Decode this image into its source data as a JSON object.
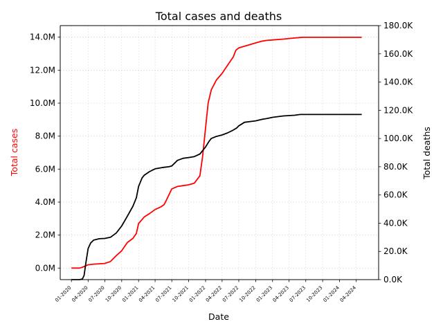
{
  "chart_data": {
    "type": "line",
    "title": "Total cases and deaths",
    "xlabel": "Date",
    "ylabel_left": "Total cases",
    "ylabel_right": "Total deaths",
    "x_tick_labels": [
      "01-2020",
      "04-2020",
      "07-2020",
      "10-2020",
      "01-2021",
      "04-2021",
      "07-2021",
      "10-2021",
      "01-2022",
      "04-2022",
      "07-2022",
      "10-2022",
      "01-2023",
      "04-2023",
      "07-2023",
      "10-2023",
      "01-2024",
      "04-2024"
    ],
    "y_left_tick_labels": [
      "0.0M",
      "2.0M",
      "4.0M",
      "6.0M",
      "8.0M",
      "10.0M",
      "12.0M",
      "14.0M"
    ],
    "y_right_tick_labels": [
      "0.0K",
      "20.0K",
      "40.0K",
      "60.0K",
      "80.0K",
      "100.0K",
      "120.0K",
      "140.0K",
      "160.0K",
      "180.0K"
    ],
    "ylim_left": [
      -700000,
      14700000
    ],
    "ylim_right": [
      0,
      180000
    ],
    "grid": true,
    "colors": {
      "cases": "#ff0000",
      "deaths": "#000000",
      "left_label": "#ff0000"
    },
    "series": [
      {
        "axis": "left",
        "color": "#ff0000",
        "x": [
          "2020-01-01",
          "2020-02-15",
          "2020-03-01",
          "2020-03-15",
          "2020-04-01",
          "2020-05-01",
          "2020-06-01",
          "2020-07-01",
          "2020-08-01",
          "2020-09-01",
          "2020-10-01",
          "2020-11-01",
          "2020-12-01",
          "2020-12-20",
          "2021-01-01",
          "2021-02-01",
          "2021-03-01",
          "2021-04-01",
          "2021-05-01",
          "2021-05-20",
          "2021-06-01",
          "2021-06-20",
          "2021-07-01",
          "2021-08-01",
          "2021-09-01",
          "2021-10-01",
          "2021-11-01",
          "2021-12-01",
          "2021-12-15",
          "2022-01-01",
          "2022-01-15",
          "2022-02-01",
          "2022-02-15",
          "2022-03-01",
          "2022-04-01",
          "2022-05-01",
          "2022-06-01",
          "2022-06-15",
          "2022-07-01",
          "2022-08-01",
          "2022-09-01",
          "2022-10-01",
          "2022-11-01",
          "2022-12-01",
          "2023-01-01",
          "2023-03-01",
          "2023-05-01",
          "2023-06-01",
          "2023-06-15",
          "2023-09-01",
          "2024-01-01",
          "2024-04-01",
          "2024-05-01"
        ],
        "values": [
          0,
          0,
          50000,
          120000,
          200000,
          240000,
          260000,
          280000,
          400000,
          750000,
          1050000,
          1550000,
          1800000,
          2100000,
          2700000,
          3100000,
          3300000,
          3550000,
          3700000,
          3850000,
          4100000,
          4550000,
          4800000,
          4950000,
          5000000,
          5050000,
          5150000,
          5600000,
          6700000,
          8500000,
          10000000,
          10800000,
          11100000,
          11400000,
          11800000,
          12300000,
          12800000,
          13200000,
          13350000,
          13450000,
          13550000,
          13650000,
          13750000,
          13800000,
          13830000,
          13880000,
          13950000,
          13980000,
          13990000,
          13990000,
          13990000,
          13990000,
          13990000
        ]
      },
      {
        "axis": "right",
        "color": "#000000",
        "x": [
          "2020-01-01",
          "2020-02-15",
          "2020-03-01",
          "2020-03-10",
          "2020-03-20",
          "2020-04-01",
          "2020-04-15",
          "2020-05-01",
          "2020-06-01",
          "2020-07-01",
          "2020-08-01",
          "2020-09-01",
          "2020-10-01",
          "2020-11-01",
          "2020-12-01",
          "2020-12-20",
          "2021-01-01",
          "2021-01-20",
          "2021-02-01",
          "2021-03-01",
          "2021-04-01",
          "2021-05-01",
          "2021-05-20",
          "2021-06-15",
          "2021-07-01",
          "2021-08-01",
          "2021-09-01",
          "2021-10-01",
          "2021-11-01",
          "2021-12-01",
          "2022-01-01",
          "2022-01-20",
          "2022-02-01",
          "2022-03-01",
          "2022-04-01",
          "2022-05-01",
          "2022-06-01",
          "2022-06-20",
          "2022-07-01",
          "2022-08-01",
          "2022-09-01",
          "2022-10-01",
          "2022-11-01",
          "2022-12-01",
          "2023-01-01",
          "2023-03-01",
          "2023-05-01",
          "2023-06-01",
          "2023-09-01",
          "2024-01-01",
          "2024-05-01"
        ],
        "values": [
          0,
          0,
          500,
          3000,
          12000,
          22000,
          26000,
          28000,
          29000,
          29200,
          30000,
          33000,
          38000,
          45000,
          52000,
          58000,
          66000,
          72000,
          74000,
          76500,
          78500,
          79200,
          79600,
          80000,
          80600,
          84500,
          86000,
          86500,
          87200,
          89000,
          94000,
          98000,
          100000,
          101500,
          102500,
          104000,
          106000,
          107500,
          109000,
          111500,
          112000,
          112500,
          113500,
          114200,
          115000,
          116000,
          116500,
          117000,
          117000,
          117000,
          117000
        ]
      }
    ]
  }
}
